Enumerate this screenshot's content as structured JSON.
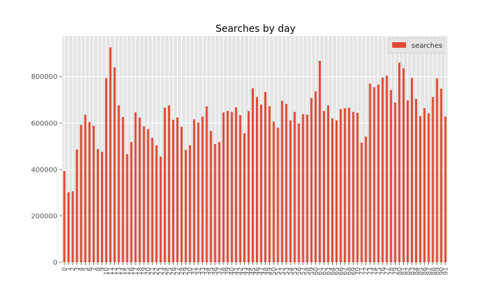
{
  "chart_data": {
    "type": "bar",
    "title": "Searches by day",
    "xlabel": "",
    "ylabel": "",
    "ylim": [
      0,
      975000
    ],
    "yticks": [
      0,
      200000,
      400000,
      600000,
      800000
    ],
    "ytick_labels": [
      "0",
      "200000",
      "400000",
      "600000",
      "800000"
    ],
    "grid": true,
    "legend_position": "top-right",
    "colors": {
      "bar": "#e24a33",
      "plot_bg": "#e5e5e5",
      "grid": "#ffffff"
    },
    "categories": [
      "0",
      "1",
      "2",
      "3",
      "4",
      "5",
      "6",
      "7",
      "8",
      "9",
      "10",
      "11",
      "12",
      "13",
      "14",
      "15",
      "16",
      "17",
      "18",
      "19",
      "20",
      "21",
      "22",
      "23",
      "24",
      "25",
      "26",
      "27",
      "28",
      "29",
      "30",
      "31",
      "32",
      "33",
      "34",
      "35",
      "36",
      "37",
      "38",
      "39",
      "40",
      "41",
      "42",
      "43",
      "44",
      "45",
      "46",
      "47",
      "48",
      "49",
      "50",
      "51",
      "52",
      "53",
      "54",
      "55",
      "56",
      "57",
      "58",
      "59",
      "60",
      "61",
      "62",
      "63",
      "64",
      "65",
      "66",
      "67",
      "68",
      "69",
      "70",
      "71",
      "72",
      "73",
      "74",
      "75",
      "76",
      "77",
      "78",
      "79",
      "80",
      "81",
      "82",
      "83",
      "84",
      "85",
      "86",
      "87",
      "88",
      "89",
      "90",
      "91"
    ],
    "series": [
      {
        "name": "searches",
        "values": [
          393000,
          302000,
          306000,
          486000,
          592000,
          636000,
          604000,
          588000,
          488000,
          476000,
          793000,
          926000,
          840000,
          676000,
          626000,
          466000,
          518000,
          646000,
          624000,
          586000,
          574000,
          536000,
          504000,
          456000,
          666000,
          676000,
          614000,
          624000,
          584000,
          484000,
          504000,
          616000,
          602000,
          628000,
          672000,
          566000,
          510000,
          518000,
          646000,
          652000,
          648000,
          668000,
          634000,
          556000,
          652000,
          750000,
          712000,
          680000,
          734000,
          672000,
          606000,
          580000,
          696000,
          682000,
          612000,
          648000,
          598000,
          638000,
          636000,
          708000,
          736000,
          868000,
          652000,
          676000,
          620000,
          612000,
          660000,
          664000,
          666000,
          648000,
          644000,
          516000,
          542000,
          770000,
          754000,
          766000,
          796000,
          804000,
          742000,
          688000,
          860000,
          836000,
          698000,
          794000,
          704000,
          630000,
          664000,
          642000,
          712000,
          792000,
          748000,
          628000
        ]
      }
    ]
  }
}
